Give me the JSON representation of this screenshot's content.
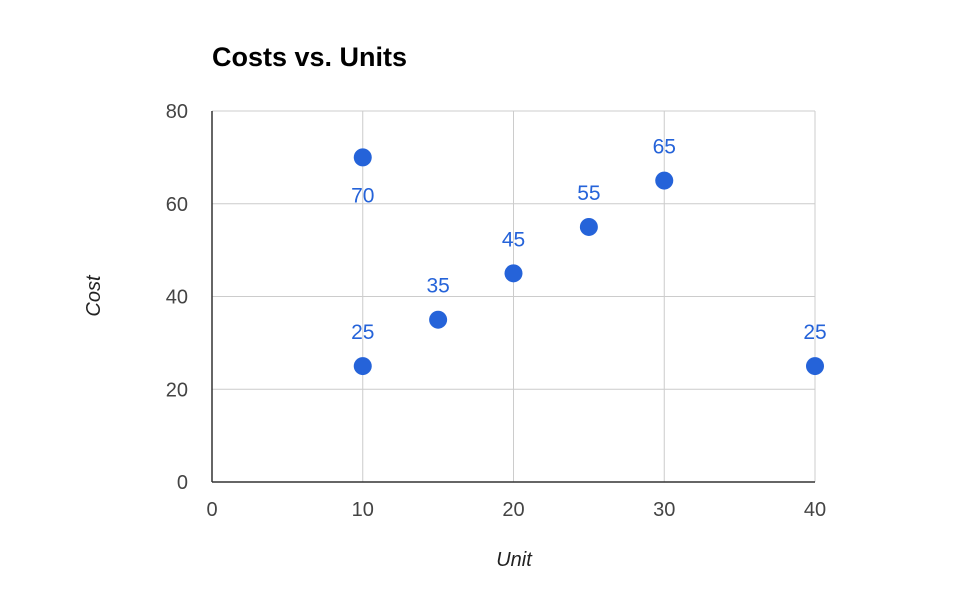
{
  "chart_data": {
    "type": "scatter",
    "title": "Costs vs. Units",
    "xlabel": "Unit",
    "ylabel": "Cost",
    "xlim": [
      0,
      40
    ],
    "ylim": [
      0,
      80
    ],
    "x_ticks": [
      0,
      10,
      20,
      30,
      40
    ],
    "y_ticks": [
      0,
      20,
      40,
      60,
      80
    ],
    "grid": true,
    "legend": "none",
    "series": [
      {
        "color": "#2563d9",
        "points": [
          {
            "x": 10,
            "y": 25,
            "label": "25",
            "label_pos": "above"
          },
          {
            "x": 10,
            "y": 70,
            "label": "70",
            "label_pos": "below"
          },
          {
            "x": 15,
            "y": 35,
            "label": "35",
            "label_pos": "above"
          },
          {
            "x": 20,
            "y": 45,
            "label": "45",
            "label_pos": "above"
          },
          {
            "x": 25,
            "y": 55,
            "label": "55",
            "label_pos": "above"
          },
          {
            "x": 30,
            "y": 65,
            "label": "65",
            "label_pos": "above"
          },
          {
            "x": 40,
            "y": 25,
            "label": "25",
            "label_pos": "above"
          }
        ]
      }
    ],
    "colors": {
      "grid": "#cccccc",
      "axis": "#333333",
      "tick_text": "#444444",
      "title_text": "#000000"
    }
  }
}
